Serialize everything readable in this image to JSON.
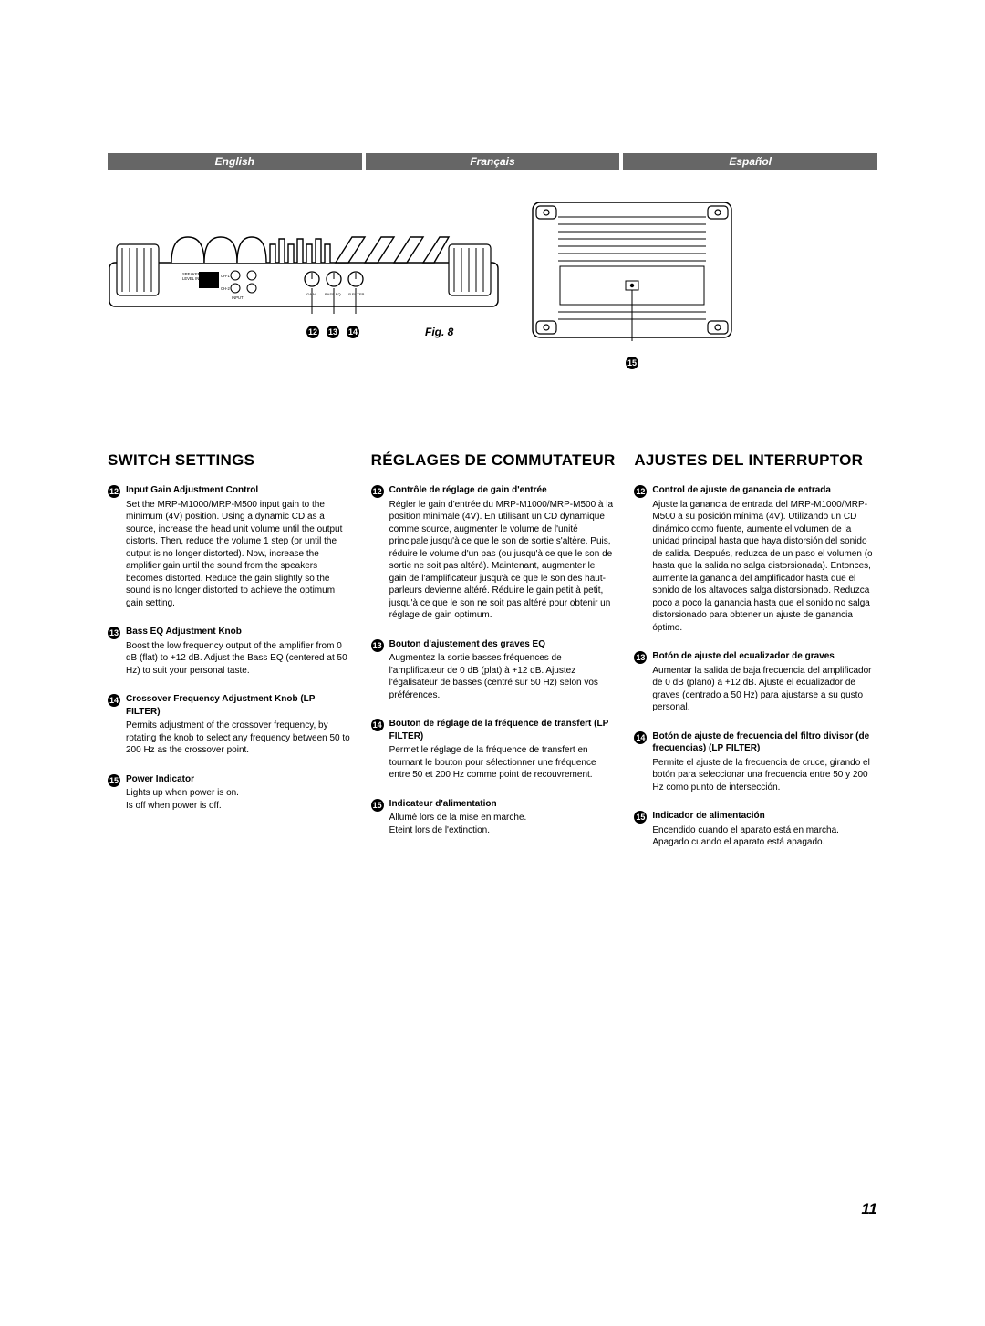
{
  "langs": [
    "English",
    "Français",
    "Español"
  ],
  "figure": {
    "caption": "Fig. 8",
    "markers_left": [
      "12",
      "13",
      "14"
    ],
    "marker_right": "15",
    "panel_labels": {
      "speaker_level_input": "SPEAKER\nLEVEL INPUT",
      "input": "INPUT",
      "ch1": "CH-1",
      "ch2": "CH-2",
      "gain": "GAIN",
      "bass_eq": "BASS EQ",
      "lp_filter": "LP FILTER"
    }
  },
  "columns": [
    {
      "title": "SWITCH SETTINGS",
      "items": [
        {
          "n": "12",
          "title": "Input Gain Adjustment Control",
          "text": "Set the MRP-M1000/MRP-M500 input gain to the minimum (4V) position. Using a dynamic CD as a source, increase the head unit volume until the output distorts. Then, reduce the volume 1 step (or until the output is no longer distorted). Now, increase the amplifier gain until the sound from the speakers becomes distorted. Reduce the gain slightly so the sound is no longer distorted to achieve the optimum gain setting."
        },
        {
          "n": "13",
          "title": "Bass EQ Adjustment Knob",
          "text": "Boost the low frequency output of the amplifier from 0 dB (flat) to +12 dB. Adjust the Bass EQ (centered at 50 Hz) to suit your personal taste."
        },
        {
          "n": "14",
          "title": "Crossover Frequency Adjustment Knob (LP FILTER)",
          "text": "Permits adjustment of the crossover frequency, by rotating the knob to select any frequency between 50 to 200 Hz as the crossover point."
        },
        {
          "n": "15",
          "title": "Power Indicator",
          "text": "Lights up when power is on.\nIs off when power is off."
        }
      ]
    },
    {
      "title": "RÉGLAGES DE COMMUTATEUR",
      "items": [
        {
          "n": "12",
          "title": "Contrôle de réglage de gain d'entrée",
          "text": "Régler le gain d'entrée du MRP-M1000/MRP-M500 à la position minimale (4V). En utilisant un CD dynamique comme source, augmenter le volume de l'unité principale jusqu'à ce que le son de sortie s'altère. Puis, réduire le volume d'un pas (ou jusqu'à ce que le son de sortie ne soit pas altéré). Maintenant, augmenter le gain de l'amplificateur jusqu'à ce que le son des haut-parleurs devienne altéré. Réduire le gain petit à petit, jusqu'à ce que le son ne soit pas altéré pour obtenir un réglage de gain optimum."
        },
        {
          "n": "13",
          "title": "Bouton d'ajustement des graves EQ",
          "text": "Augmentez la sortie basses fréquences de l'amplificateur de 0 dB (plat) à +12 dB. Ajustez l'égalisateur de basses (centré sur 50 Hz) selon vos préférences."
        },
        {
          "n": "14",
          "title": "Bouton de réglage de la fréquence de transfert (LP FILTER)",
          "text": "Permet le réglage de la fréquence de transfert en tournant le bouton pour sélectionner une fréquence entre 50 et 200 Hz comme point de recouvrement."
        },
        {
          "n": "15",
          "title": "Indicateur d'alimentation",
          "text": "Allumé lors de la mise en marche.\nEteint lors de l'extinction."
        }
      ]
    },
    {
      "title": "AJUSTES DEL INTERRUPTOR",
      "items": [
        {
          "n": "12",
          "title": "Control de ajuste de ganancia de entrada",
          "text": "Ajuste la ganancia de entrada del MRP-M1000/MRP-M500 a su posición mínima (4V). Utilizando un CD dinámico como fuente, aumente el volumen de la unidad principal hasta que haya distorsión del sonido de salida. Después, reduzca de un paso el volumen (o hasta que la salida no salga distorsionada). Entonces, aumente la ganancia del amplificador hasta que el sonido de los altavoces salga distorsionado. Reduzca poco a poco la ganancia hasta que el sonido no salga distorsionado para obtener un ajuste de ganancia óptimo."
        },
        {
          "n": "13",
          "title": "Botón de ajuste del ecualizador de graves",
          "text": "Aumentar la salida de baja frecuencia del amplificador de 0 dB (plano) a +12 dB. Ajuste el ecualizador de graves (centrado a 50 Hz) para ajustarse a su gusto personal."
        },
        {
          "n": "14",
          "title": "Botón de ajuste de frecuencia del filtro divisor (de frecuencias) (LP FILTER)",
          "text": "Permite el ajuste de la frecuencia de cruce, girando el botón para seleccionar una frecuencia entre 50 y 200 Hz como punto de intersección."
        },
        {
          "n": "15",
          "title": "Indicador de alimentación",
          "text": "Encendido cuando el aparato está en marcha.\nApagado cuando el aparato está apagado."
        }
      ]
    }
  ],
  "page_number": "11"
}
